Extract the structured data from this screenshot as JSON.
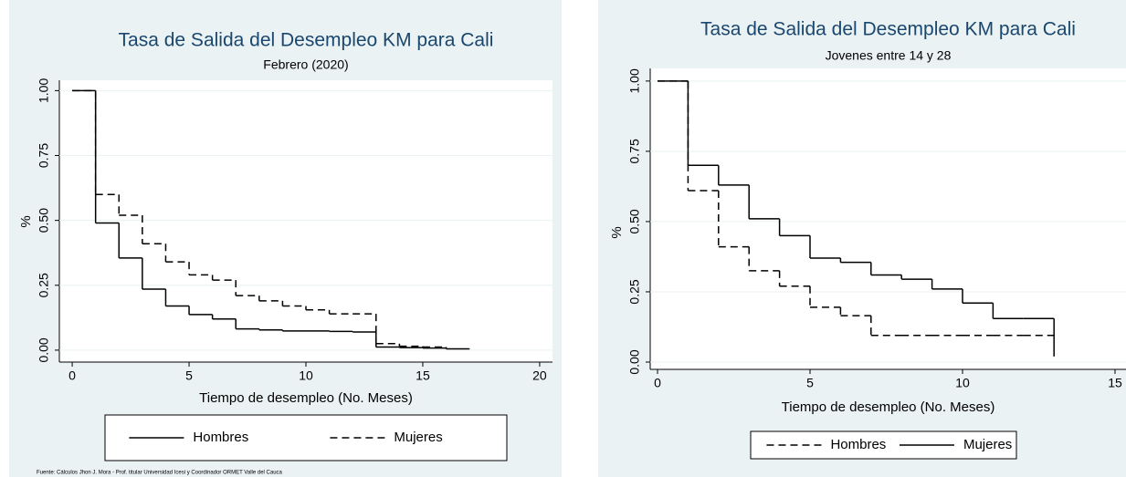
{
  "chart_data": [
    {
      "type": "step",
      "title": "Tasa de Salida del Desempleo KM para Cali",
      "subtitle": "Febrero (2020)",
      "x_label": "Tiempo de desempleo (No. Meses)",
      "y_label": "%",
      "note": "Fuente: Cálculos Jhon J. Mora - Prof. titular Universidad Icesi y Coordinador ORMET Valle del Cauca",
      "x": [
        0,
        1,
        2,
        3,
        4,
        5,
        6,
        7,
        8,
        9,
        10,
        11,
        12,
        13,
        14,
        15,
        16,
        17
      ],
      "series": [
        {
          "name": "Hombres",
          "color": "#000000",
          "dash": "solid",
          "values": [
            1,
            0.49,
            0.355,
            0.235,
            0.17,
            0.137,
            0.12,
            0.082,
            0.078,
            0.074,
            0.074,
            0.072,
            0.07,
            0.012,
            0.01,
            0.008,
            0.005,
            0.004
          ]
        },
        {
          "name": "Mujeres",
          "color": "#000000",
          "dash": "dashed",
          "values": [
            1,
            0.6,
            0.52,
            0.41,
            0.34,
            0.29,
            0.27,
            0.21,
            0.19,
            0.17,
            0.155,
            0.14,
            0.14,
            0.025,
            0.015,
            0.012,
            0.005,
            null
          ]
        }
      ],
      "xlim": [
        -0.55,
        20.55
      ],
      "xticks": [
        0,
        5,
        10,
        15,
        20
      ],
      "ylim": [
        -0.046,
        1.04
      ],
      "yticks": [
        {
          "value": 0,
          "label": "0.00"
        },
        {
          "value": 0.25,
          "label": "0.25"
        },
        {
          "value": 0.5,
          "label": "0.50"
        },
        {
          "value": 0.75,
          "label": "0.75"
        },
        {
          "value": 1,
          "label": "1.00"
        }
      ],
      "grid": true,
      "legend": "bottom"
    },
    {
      "type": "step",
      "title": "Tasa de Salida del Desempleo KM para Cali",
      "subtitle": "Jovenes entre 14 y 28",
      "x_label": "Tiempo de desempleo (No. Meses)",
      "y_label": "%",
      "x": [
        0,
        1,
        2,
        3,
        4,
        5,
        6,
        7,
        8,
        9,
        10,
        11,
        12,
        13
      ],
      "series": [
        {
          "name": "Hombres",
          "color": "#000000",
          "dash": "dashed",
          "values": [
            1,
            0.61,
            0.41,
            0.325,
            0.27,
            0.195,
            0.165,
            0.095,
            0.095,
            0.095,
            0.095,
            0.095,
            0.095,
            0.095
          ]
        },
        {
          "name": "Mujeres",
          "color": "#000000",
          "dash": "solid",
          "values": [
            1,
            0.7,
            0.63,
            0.51,
            0.45,
            0.37,
            0.355,
            0.31,
            0.295,
            0.26,
            0.21,
            0.155,
            0.155,
            0.02
          ]
        }
      ],
      "xlim": [
        -0.24,
        15.36
      ],
      "xticks": [
        0,
        5,
        10,
        15
      ],
      "ylim": [
        -0.026,
        1.045
      ],
      "yticks": [
        {
          "value": 0,
          "label": "0.00"
        },
        {
          "value": 0.25,
          "label": "0.25"
        },
        {
          "value": 0.5,
          "label": "0.50"
        },
        {
          "value": 0.75,
          "label": "0.75"
        },
        {
          "value": 1,
          "label": "1.00"
        }
      ],
      "grid": true,
      "legend": "bottom"
    }
  ]
}
